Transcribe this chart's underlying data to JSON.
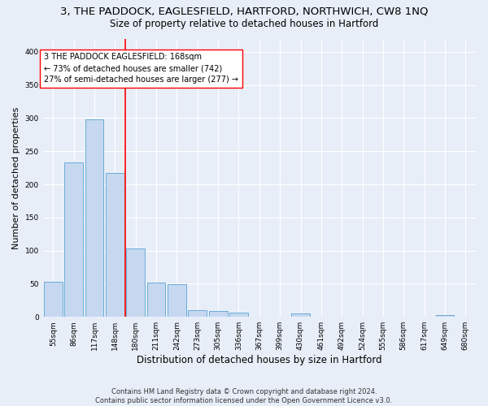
{
  "title": "3, THE PADDOCK, EAGLESFIELD, HARTFORD, NORTHWICH, CW8 1NQ",
  "subtitle": "Size of property relative to detached houses in Hartford",
  "xlabel": "Distribution of detached houses by size in Hartford",
  "ylabel": "Number of detached properties",
  "bar_labels": [
    "55sqm",
    "86sqm",
    "117sqm",
    "148sqm",
    "180sqm",
    "211sqm",
    "242sqm",
    "273sqm",
    "305sqm",
    "336sqm",
    "367sqm",
    "399sqm",
    "430sqm",
    "461sqm",
    "492sqm",
    "524sqm",
    "555sqm",
    "586sqm",
    "617sqm",
    "649sqm",
    "680sqm"
  ],
  "bar_values": [
    53,
    233,
    298,
    217,
    103,
    52,
    49,
    10,
    9,
    6,
    0,
    0,
    5,
    0,
    0,
    0,
    0,
    0,
    0,
    3,
    0
  ],
  "bar_color": "#c5d8f0",
  "bar_edge_color": "#6aacd8",
  "ylim": [
    0,
    420
  ],
  "yticks": [
    0,
    50,
    100,
    150,
    200,
    250,
    300,
    350,
    400
  ],
  "vline_x_idx": 3.5,
  "annotation_line1": "3 THE PADDOCK EAGLESFIELD: 168sqm",
  "annotation_line2": "← 73% of detached houses are smaller (742)",
  "annotation_line3": "27% of semi-detached houses are larger (277) →",
  "footer_text": "Contains HM Land Registry data © Crown copyright and database right 2024.\nContains public sector information licensed under the Open Government Licence v3.0.",
  "bg_color": "#e8eef8",
  "plot_bg_color": "#e8eef8",
  "grid_color": "#ffffff",
  "title_fontsize": 9.5,
  "subtitle_fontsize": 8.5,
  "ylabel_fontsize": 8,
  "xlabel_fontsize": 8.5,
  "tick_fontsize": 6.5,
  "annotation_fontsize": 7,
  "footer_fontsize": 6
}
